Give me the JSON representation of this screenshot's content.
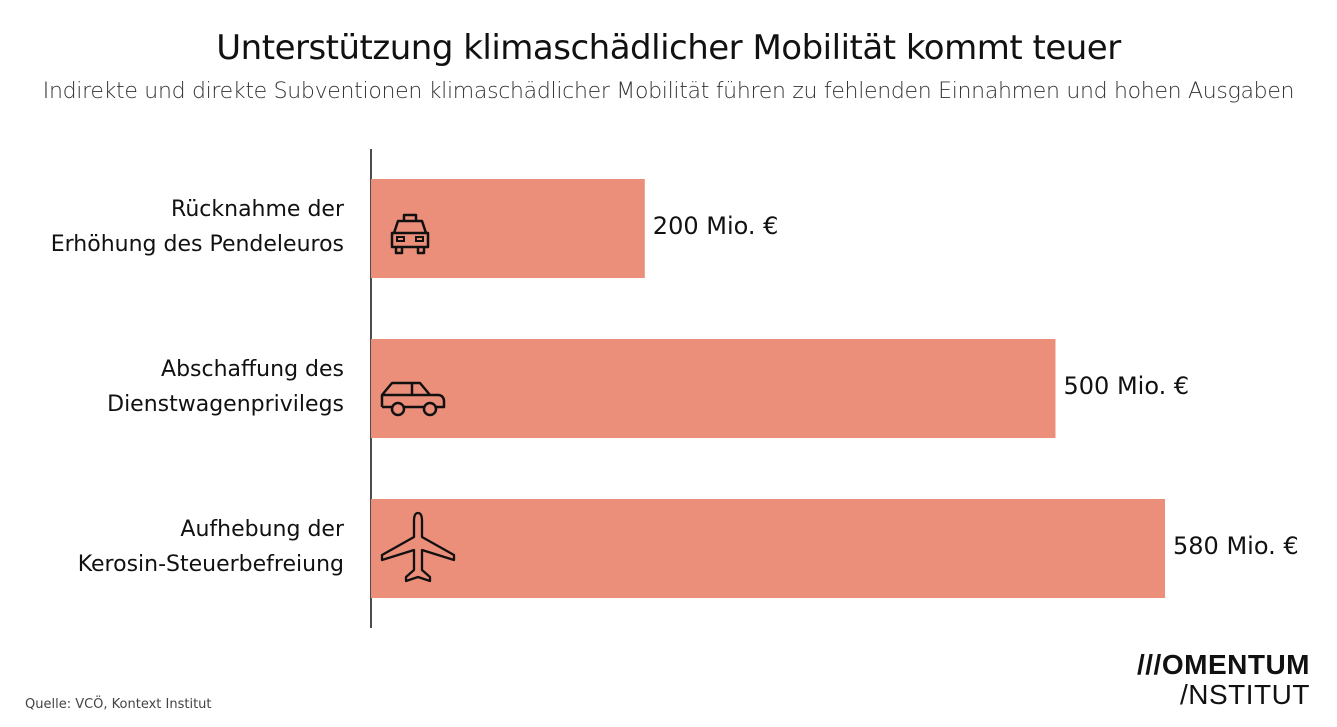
{
  "title": "Unterstützung klimaschädlicher Mobilität kommt teuer",
  "subtitle": "Indirekte und direkte Subventionen klimaschädlicher Mobilität führen zu fehlenden Einnahmen und hohen Ausgaben",
  "source": "Quelle: VCÖ, Kontext Institut",
  "logo": {
    "line1": "///OMENTUM",
    "line2": "/NSTITUT"
  },
  "colors": {
    "bar": "#EC8F7A",
    "axis": "#111111"
  },
  "chart_data": {
    "type": "bar",
    "orientation": "horizontal",
    "categories": [
      {
        "line1": "Rücknahme der",
        "line2": "Erhöhung des Pendeleuros",
        "icon": "taxi-icon"
      },
      {
        "line1": "Abschaffung des",
        "line2": "Dienstwagenprivilegs",
        "icon": "car-icon"
      },
      {
        "line1": "Aufhebung der",
        "line2": "Kerosin-Steuerbefreiung",
        "icon": "airplane-icon"
      }
    ],
    "values": [
      200,
      500,
      580
    ],
    "labels": [
      "200 Mio. €",
      "500 Mio. €",
      "580 Mio. €"
    ],
    "unit": "Mio. €",
    "xlim": [
      0,
      700
    ],
    "grid": false
  }
}
